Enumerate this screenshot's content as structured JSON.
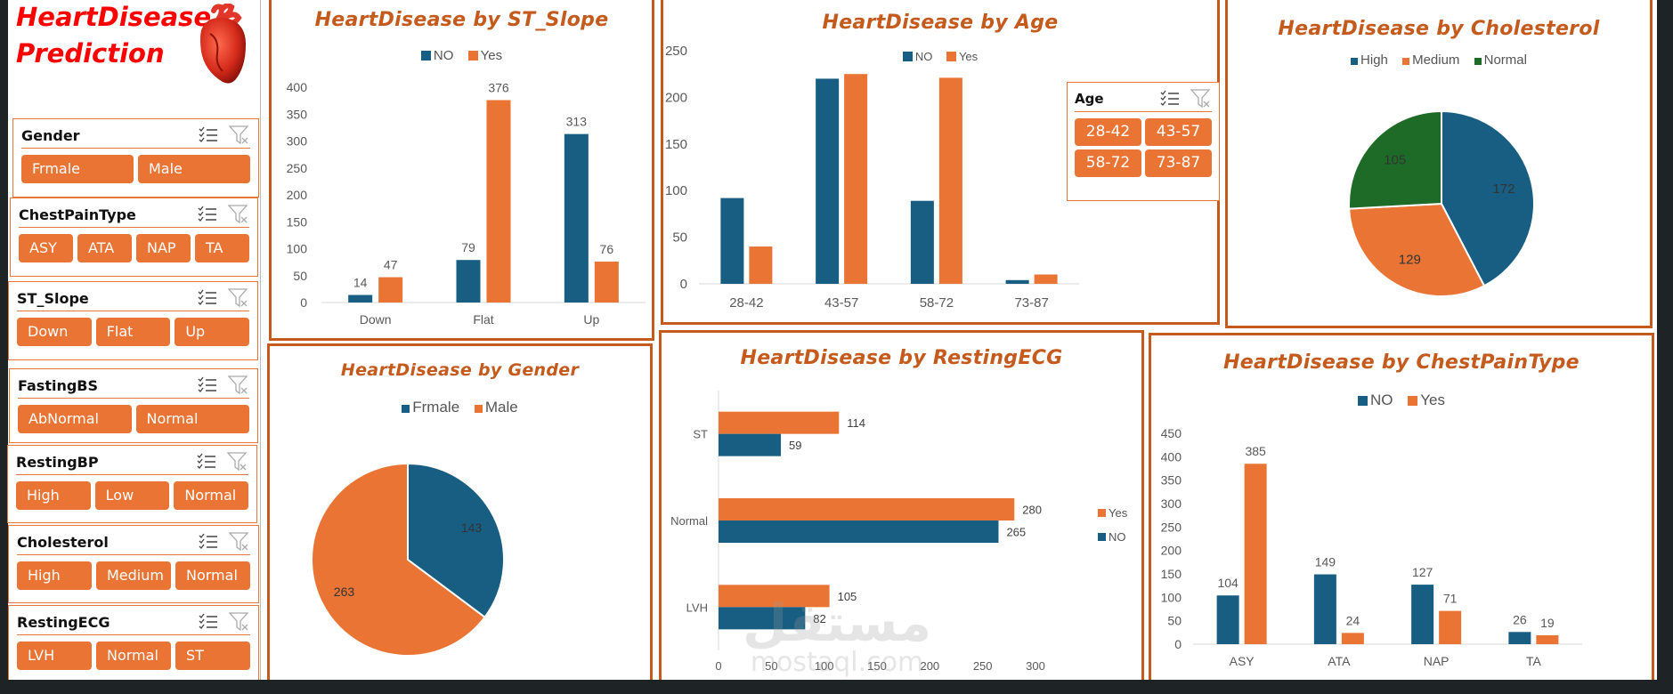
{
  "header": {
    "title_line1": "HeartDisease",
    "title_line2": "Prediction",
    "logo_icon": "heart-icon"
  },
  "colors": {
    "no": "#175e82",
    "yes": "#e97434",
    "normal_green": "#1e6b27",
    "accent": "#c55a1d",
    "title_red": "#ff0000"
  },
  "slicers": [
    {
      "name": "Gender",
      "items": [
        "Frmale",
        "Male"
      ]
    },
    {
      "name": "ChestPainType",
      "items": [
        "ASY",
        "ATA",
        "NAP",
        "TA"
      ]
    },
    {
      "name": "ST_Slope",
      "items": [
        "Down",
        "Flat",
        "Up"
      ]
    },
    {
      "name": "FastingBS",
      "items": [
        "AbNormal",
        "Normal"
      ]
    },
    {
      "name": "RestingBP",
      "items": [
        "High",
        "Low",
        "Normal"
      ]
    },
    {
      "name": "Cholesterol",
      "items": [
        "High",
        "Medium",
        "Normal"
      ]
    },
    {
      "name": "RestingECG",
      "items": [
        "LVH",
        "Normal",
        "ST"
      ]
    }
  ],
  "age_slicer": {
    "name": "Age",
    "items": [
      "28-42",
      "43-57",
      "58-72",
      "73-87"
    ]
  },
  "watermark": {
    "arabic": "مستقل",
    "latin": "mostaql.com"
  },
  "chart_data": [
    {
      "id": "st_slope",
      "type": "bar",
      "title": "HeartDisease by ST_Slope",
      "categories": [
        "Down",
        "Flat",
        "Up"
      ],
      "series": [
        {
          "name": "NO",
          "values": [
            14,
            79,
            313
          ]
        },
        {
          "name": "Yes",
          "values": [
            47,
            376,
            76
          ]
        }
      ],
      "yticks": [
        0,
        50,
        100,
        150,
        200,
        250,
        300,
        350,
        400
      ],
      "ylim": [
        0,
        400
      ],
      "data_labels": true,
      "legend": "top"
    },
    {
      "id": "age",
      "type": "bar",
      "title": "HeartDisease by Age",
      "categories": [
        "28-42",
        "43-57",
        "58-72",
        "73-87"
      ],
      "series": [
        {
          "name": "NO",
          "values": [
            92,
            220,
            89,
            4
          ]
        },
        {
          "name": "Yes",
          "values": [
            40,
            225,
            221,
            10
          ]
        }
      ],
      "yticks": [
        0,
        50,
        100,
        150,
        200,
        250
      ],
      "ylim": [
        0,
        250
      ],
      "data_labels": false,
      "legend": "top"
    },
    {
      "id": "cholesterol",
      "type": "pie",
      "title": "HeartDisease by Cholesterol",
      "labels": [
        "High",
        "Medium",
        "Normal"
      ],
      "values": [
        172,
        129,
        105
      ],
      "legend": "top"
    },
    {
      "id": "gender",
      "type": "pie",
      "title": "HeartDisease by Gender",
      "labels": [
        "Frmale",
        "Male"
      ],
      "values": [
        143,
        263
      ],
      "legend": "top"
    },
    {
      "id": "resting_ecg",
      "type": "bar",
      "orientation": "horizontal",
      "title": "HeartDisease by RestingECG",
      "categories": [
        "LVH",
        "Normal",
        "ST"
      ],
      "series": [
        {
          "name": "NO",
          "values": [
            82,
            265,
            59
          ]
        },
        {
          "name": "Yes",
          "values": [
            105,
            280,
            114
          ]
        }
      ],
      "xticks": [
        0,
        50,
        100,
        150,
        200,
        250,
        300
      ],
      "xlim": [
        0,
        300
      ],
      "data_labels": true,
      "legend": "right"
    },
    {
      "id": "chest_pain",
      "type": "bar",
      "title": "HeartDisease by ChestPainType",
      "categories": [
        "ASY",
        "ATA",
        "NAP",
        "TA"
      ],
      "series": [
        {
          "name": "NO",
          "values": [
            104,
            149,
            127,
            26
          ]
        },
        {
          "name": "Yes",
          "values": [
            385,
            24,
            71,
            19
          ]
        }
      ],
      "yticks": [
        0,
        50,
        100,
        150,
        200,
        250,
        300,
        350,
        400,
        450
      ],
      "ylim": [
        0,
        450
      ],
      "data_labels": true,
      "legend": "top"
    }
  ]
}
